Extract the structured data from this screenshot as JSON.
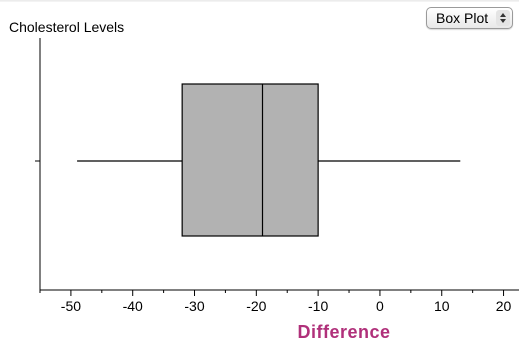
{
  "chart_data": {
    "type": "boxplot",
    "title": "Cholesterol Levels",
    "xlabel": "Difference",
    "ylabel": "",
    "xlim": [
      -55,
      22.5
    ],
    "ticks": [
      -50,
      -40,
      -30,
      -20,
      -10,
      0,
      10,
      20
    ],
    "tick_labels": [
      "-50",
      "-40",
      "-30",
      "-20",
      "-10",
      "0",
      "10",
      "20"
    ],
    "series": [
      {
        "min": -49,
        "q1": -32,
        "median": -19,
        "q3": -10,
        "max": 13
      }
    ],
    "grid": false,
    "box_color": "#b2b2b2",
    "xlabel_color": "#b0307a"
  },
  "controls": {
    "plot_type": {
      "selected": "Box Plot",
      "arrows_icon": "up-down-arrows-icon"
    }
  }
}
